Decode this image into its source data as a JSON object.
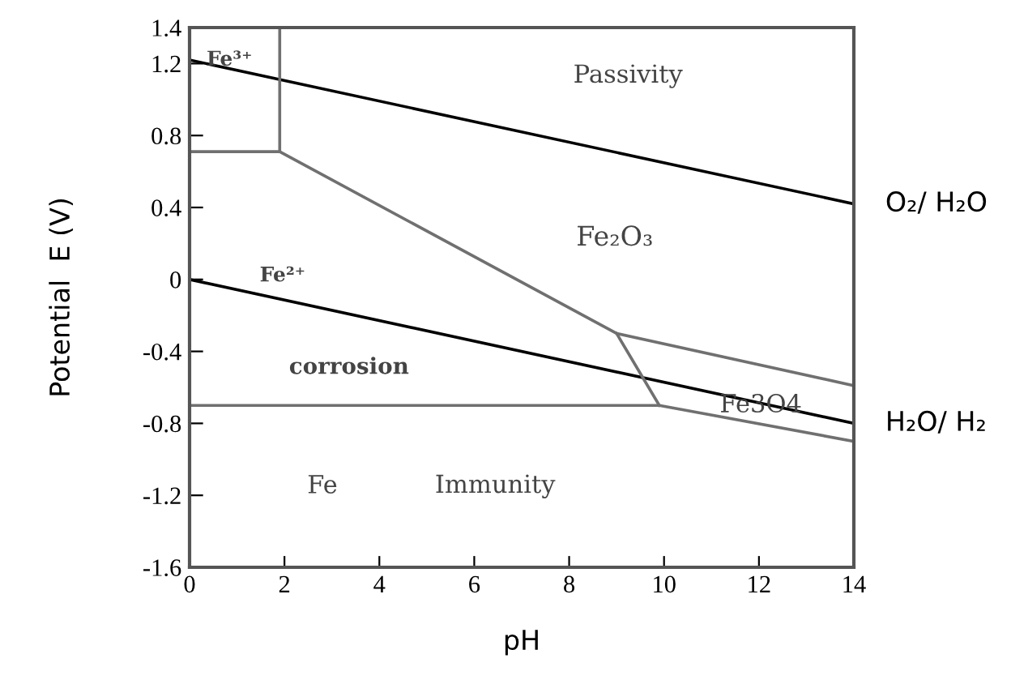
{
  "chart_data": {
    "type": "line",
    "xlabel": "pH",
    "ylabel": "Potential  E (V)",
    "xlim": [
      0,
      14
    ],
    "xticks": [
      0,
      2,
      4,
      6,
      8,
      10,
      12,
      14
    ],
    "ylim": [
      -1.6,
      1.4
    ],
    "yticks": [
      -1.6,
      -1.2,
      -0.8,
      -0.4,
      0,
      0.4,
      0.8,
      1.2,
      1.4
    ],
    "grid": false,
    "legend": false,
    "marker": "none",
    "line_style": "solid",
    "series": [
      {
        "color": "#000000",
        "x": [
          0,
          14
        ],
        "values": [
          1.22,
          0.42
        ]
      },
      {
        "color": "#000000",
        "x": [
          0,
          14
        ],
        "values": [
          0.0,
          -0.8
        ]
      },
      {
        "color": "#707070",
        "x": [
          1.9,
          1.9
        ],
        "values": [
          1.4,
          0.71
        ]
      },
      {
        "color": "#707070",
        "x": [
          0,
          1.9,
          9.0,
          14
        ],
        "values": [
          0.71,
          0.71,
          -0.3,
          -0.59
        ]
      },
      {
        "color": "#707070",
        "x": [
          9.0,
          9.9
        ],
        "values": [
          -0.3,
          -0.7
        ]
      },
      {
        "color": "#707070",
        "x": [
          0,
          9.9,
          14
        ],
        "values": [
          -0.7,
          -0.7,
          -0.9
        ]
      }
    ],
    "annotations": [
      "Fe³⁺",
      "Passivity",
      "Fe₂O₃",
      "Fe²⁺",
      "corrosion",
      "Fe3O4",
      "Fe",
      "Immunity",
      {
        "text": "O₂/ H₂O",
        "x": 14,
        "y": 0.42
      },
      {
        "text": "H₂O/ H₂",
        "x": 14,
        "y": -0.8
      }
    ]
  }
}
